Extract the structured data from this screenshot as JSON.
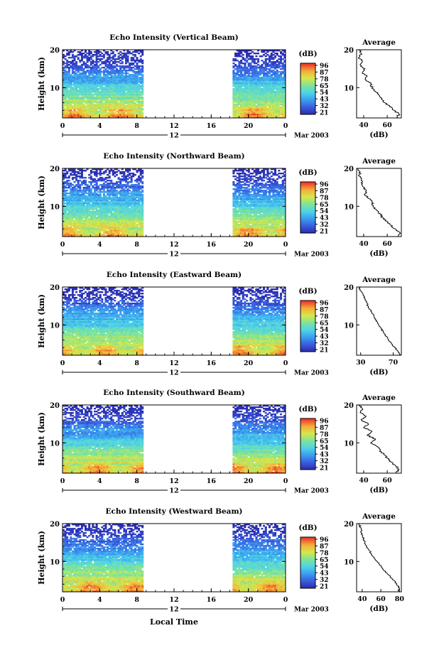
{
  "figure": {
    "x_axis_label": "Local Time",
    "date_label": "Mar 2003",
    "day_label": "12",
    "colorbar_unit": "(dB)",
    "colorbar_ticks": [
      "96",
      "87",
      "78",
      "65",
      "54",
      "43",
      "32",
      "21"
    ],
    "colors": {
      "colormap": [
        "#2b2fb0",
        "#3b5fe0",
        "#3aa0f0",
        "#4fd4e8",
        "#7de39a",
        "#d6e84a",
        "#f5b03a",
        "#ee3b2a"
      ],
      "profile_line": "#000000"
    }
  },
  "chart_data": [
    {
      "type": "heatmap",
      "title": "Echo Intensity (Vertical Beam)",
      "xlabel": "",
      "ylabel": "Height (km)",
      "xticks": [
        "0",
        "4",
        "8",
        "12",
        "16",
        "20",
        "0"
      ],
      "yticks": [
        "20",
        "10"
      ],
      "xlim": [
        0,
        24
      ],
      "ylim": [
        2,
        20
      ],
      "data_gap_hours": [
        8.7,
        18.3
      ],
      "color_scale_db": [
        21,
        96
      ],
      "profile": {
        "title": "Average",
        "xlabel": "(dB)",
        "xticks": [
          "40",
          "60"
        ],
        "xlim": [
          34,
          72
        ],
        "ylim": [
          2,
          20
        ],
        "points": [
          [
            36,
            20
          ],
          [
            38,
            19
          ],
          [
            36,
            18
          ],
          [
            39,
            17
          ],
          [
            37,
            16
          ],
          [
            41,
            15
          ],
          [
            39,
            14
          ],
          [
            43,
            13
          ],
          [
            42,
            12
          ],
          [
            46,
            11
          ],
          [
            47,
            10
          ],
          [
            50,
            9
          ],
          [
            53,
            8
          ],
          [
            55,
            7
          ],
          [
            58,
            6
          ],
          [
            62,
            5
          ],
          [
            66,
            4
          ],
          [
            70,
            3
          ],
          [
            68,
            2
          ]
        ]
      }
    },
    {
      "type": "heatmap",
      "title": "Echo Intensity (Northward Beam)",
      "xlabel": "",
      "ylabel": "Height (km)",
      "xticks": [
        "0",
        "4",
        "8",
        "12",
        "16",
        "20",
        "0"
      ],
      "yticks": [
        "20",
        "10"
      ],
      "xlim": [
        0,
        24
      ],
      "ylim": [
        2,
        20
      ],
      "data_gap_hours": [
        8.7,
        18.3
      ],
      "color_scale_db": [
        21,
        96
      ],
      "profile": {
        "title": "Average",
        "xlabel": "(dB)",
        "xticks": [
          "40",
          "60"
        ],
        "xlim": [
          34,
          72
        ],
        "ylim": [
          2,
          20
        ],
        "points": [
          [
            35,
            20
          ],
          [
            37,
            19
          ],
          [
            36,
            18
          ],
          [
            38,
            17
          ],
          [
            39,
            16
          ],
          [
            40,
            15
          ],
          [
            42,
            14
          ],
          [
            41,
            13
          ],
          [
            45,
            12
          ],
          [
            47,
            11
          ],
          [
            48,
            10
          ],
          [
            51,
            9
          ],
          [
            54,
            8
          ],
          [
            56,
            7
          ],
          [
            60,
            6
          ],
          [
            63,
            5
          ],
          [
            67,
            4
          ],
          [
            71,
            3
          ],
          [
            69,
            2
          ]
        ]
      }
    },
    {
      "type": "heatmap",
      "title": "Echo Intensity (Eastward Beam)",
      "xlabel": "",
      "ylabel": "Height (km)",
      "xticks": [
        "0",
        "4",
        "8",
        "12",
        "16",
        "20",
        "0"
      ],
      "yticks": [
        "20",
        "10"
      ],
      "xlim": [
        0,
        24
      ],
      "ylim": [
        2,
        20
      ],
      "data_gap_hours": [
        8.7,
        18.3
      ],
      "color_scale_db": [
        21,
        96
      ],
      "profile": {
        "title": "Average",
        "xlabel": "(dB)",
        "xticks": [
          "30",
          "70"
        ],
        "xlim": [
          25,
          80
        ],
        "ylim": [
          2,
          20
        ],
        "points": [
          [
            28,
            20
          ],
          [
            30,
            19
          ],
          [
            33,
            18
          ],
          [
            35,
            17
          ],
          [
            37,
            16
          ],
          [
            39,
            15
          ],
          [
            42,
            14
          ],
          [
            44,
            13
          ],
          [
            47,
            12
          ],
          [
            49,
            11
          ],
          [
            52,
            10
          ],
          [
            55,
            9
          ],
          [
            58,
            8
          ],
          [
            61,
            7
          ],
          [
            64,
            6
          ],
          [
            68,
            5
          ],
          [
            72,
            4
          ],
          [
            76,
            3
          ],
          [
            78,
            2
          ]
        ]
      }
    },
    {
      "type": "heatmap",
      "title": "Echo Intensity (Southward Beam)",
      "xlabel": "",
      "ylabel": "Height (km)",
      "xticks": [
        "0",
        "4",
        "8",
        "12",
        "16",
        "20",
        "0"
      ],
      "yticks": [
        "20",
        "10"
      ],
      "xlim": [
        0,
        24
      ],
      "ylim": [
        2,
        20
      ],
      "data_gap_hours": [
        8.7,
        18.3
      ],
      "color_scale_db": [
        21,
        96
      ],
      "profile": {
        "title": "Average",
        "xlabel": "(dB)",
        "xticks": [
          "40",
          "60"
        ],
        "xlim": [
          34,
          72
        ],
        "ylim": [
          2,
          20
        ],
        "points": [
          [
            36,
            20
          ],
          [
            39,
            19
          ],
          [
            37,
            18
          ],
          [
            42,
            17
          ],
          [
            38,
            16
          ],
          [
            44,
            15
          ],
          [
            40,
            14
          ],
          [
            47,
            13
          ],
          [
            43,
            12
          ],
          [
            50,
            11
          ],
          [
            46,
            10
          ],
          [
            52,
            9
          ],
          [
            54,
            8
          ],
          [
            57,
            7
          ],
          [
            60,
            6
          ],
          [
            63,
            5
          ],
          [
            67,
            4
          ],
          [
            70,
            3
          ],
          [
            68,
            2
          ]
        ]
      }
    },
    {
      "type": "heatmap",
      "title": "Echo Intensity (Westward Beam)",
      "xlabel": "",
      "ylabel": "Height (km)",
      "xticks": [
        "0",
        "4",
        "8",
        "12",
        "16",
        "20",
        "0"
      ],
      "yticks": [
        "20",
        "10"
      ],
      "xlim": [
        0,
        24
      ],
      "ylim": [
        2,
        20
      ],
      "data_gap_hours": [
        8.7,
        18.3
      ],
      "color_scale_db": [
        21,
        96
      ],
      "profile": {
        "title": "Average",
        "xlabel": "(dB)",
        "xticks": [
          "40",
          "60",
          "80"
        ],
        "xlim": [
          34,
          82
        ],
        "ylim": [
          2,
          20
        ],
        "points": [
          [
            37,
            20
          ],
          [
            38,
            19
          ],
          [
            39,
            18
          ],
          [
            40,
            17
          ],
          [
            41,
            16
          ],
          [
            43,
            15
          ],
          [
            45,
            14
          ],
          [
            47,
            13
          ],
          [
            50,
            12
          ],
          [
            53,
            11
          ],
          [
            56,
            10
          ],
          [
            59,
            9
          ],
          [
            62,
            8
          ],
          [
            66,
            7
          ],
          [
            70,
            6
          ],
          [
            74,
            5
          ],
          [
            77,
            4
          ],
          [
            80,
            3
          ],
          [
            79,
            2
          ]
        ]
      }
    }
  ]
}
